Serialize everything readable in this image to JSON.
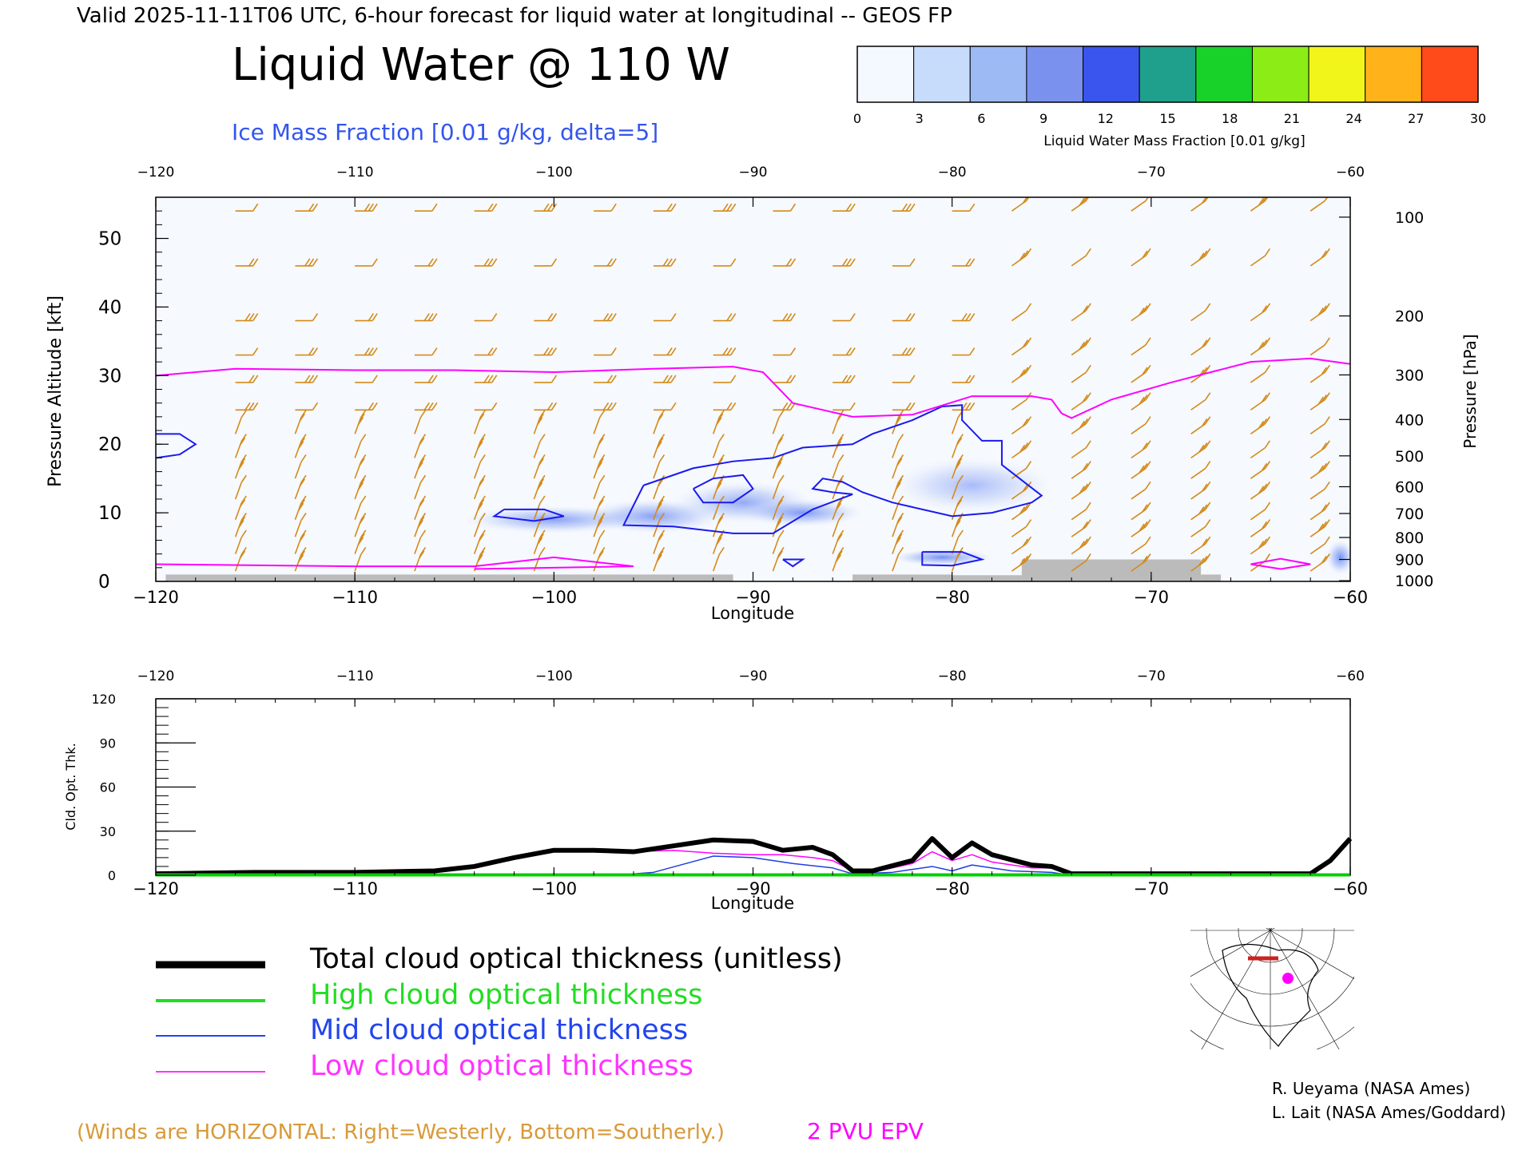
{
  "header": {
    "valid_line": "Valid 2025-11-11T06 UTC, 6-hour forecast for liquid water at longitudinal -- GEOS FP",
    "main_title": "Liquid Water @ 110 W",
    "subtitle": "Ice Mass Fraction [0.01 g/kg, delta=5]"
  },
  "colorbar": {
    "label": "Liquid Water Mass Fraction [0.01 g/kg]",
    "ticks": [
      "0",
      "3",
      "6",
      "9",
      "12",
      "15",
      "18",
      "21",
      "24",
      "27",
      "30"
    ],
    "colors": [
      "#f4f8ff",
      "#c7dcfb",
      "#9ebaf5",
      "#7a92ee",
      "#3a55ee",
      "#1ea08c",
      "#18d22a",
      "#8cec16",
      "#f2f51a",
      "#ffb21a",
      "#ff4a1a"
    ]
  },
  "chart_data": [
    {
      "type": "heatmap",
      "title": "Liquid Water @ 110 W",
      "subtitle": "Ice Mass Fraction [0.01 g/kg, delta=5]",
      "xlabel": "Longitude",
      "ylabel": "Pressure Altitude [kft]",
      "ylabel_right": "Pressure [hPa]",
      "xlim": [
        -120,
        -60
      ],
      "ylim": [
        0,
        56
      ],
      "xticks": [
        -120,
        -110,
        -100,
        -90,
        -80,
        -70,
        -60
      ],
      "xtick_labels": [
        "−120",
        "−110",
        "−100",
        "−90",
        "−80",
        "−70",
        "−60"
      ],
      "yticks": [
        0,
        10,
        20,
        30,
        40,
        50
      ],
      "ytick_labels": [
        "0",
        "10",
        "20",
        "30",
        "40",
        "50"
      ],
      "pressure_ticks": [
        {
          "label": "100",
          "kft": 53.1
        },
        {
          "label": "200",
          "kft": 38.7
        },
        {
          "label": "300",
          "kft": 30.1
        },
        {
          "label": "400",
          "kft": 23.6
        },
        {
          "label": "500",
          "kft": 18.3
        },
        {
          "label": "600",
          "kft": 13.8
        },
        {
          "label": "700",
          "kft": 9.9
        },
        {
          "label": "800",
          "kft": 6.4
        },
        {
          "label": "900",
          "kft": 3.2
        },
        {
          "label": "1000",
          "kft": 0.1
        }
      ],
      "liquid_water_patches": [
        {
          "lon": -100,
          "kft": 9,
          "rx": 4.5,
          "ry": 2.0,
          "value": 6
        },
        {
          "lon": -95,
          "kft": 9.5,
          "rx": 3.5,
          "ry": 2.5,
          "value": 6
        },
        {
          "lon": -90.5,
          "kft": 11.5,
          "rx": 3.5,
          "ry": 3.0,
          "value": 5
        },
        {
          "lon": -87.5,
          "kft": 10,
          "rx": 3.0,
          "ry": 2.0,
          "value": 7
        },
        {
          "lon": -79,
          "kft": 14,
          "rx": 4.0,
          "ry": 4.0,
          "value": 3
        },
        {
          "lon": -80.5,
          "kft": 3.5,
          "rx": 2.5,
          "ry": 1.2,
          "value": 9
        },
        {
          "lon": -60.5,
          "kft": 3.5,
          "rx": 0.7,
          "ry": 2.5,
          "value": 10
        }
      ],
      "epv_2pvu": {
        "name": "2 PVU EPV",
        "lon": [
          -120,
          -116,
          -110,
          -105,
          -100,
          -95,
          -91,
          -89.5,
          -88,
          -85,
          -82,
          -79,
          -76,
          -75,
          -74.5,
          -74,
          -72,
          -69,
          -65,
          -62,
          -60
        ],
        "kft": [
          30,
          31,
          30.8,
          30.8,
          30.5,
          31,
          31.3,
          30.5,
          26,
          24,
          24.3,
          27,
          27,
          26.5,
          24.5,
          23.8,
          26.5,
          29,
          32,
          32.5,
          31.7
        ]
      },
      "ice_contours": [
        {
          "lon": [
            -95.5,
            -93,
            -91,
            -89,
            -87.5,
            -85,
            -84,
            -82,
            -80.5,
            -79.5,
            -79.5,
            -78.5,
            -77.5,
            -77.5,
            -75.5,
            -76,
            -78,
            -80,
            -83,
            -84.5,
            -85.5,
            -86.5,
            -87,
            -86,
            -85,
            -87,
            -89,
            -91,
            -94,
            -96.5,
            -95.5
          ],
          "kft": [
            14,
            16.5,
            17.5,
            18,
            19.5,
            20,
            21.5,
            23.5,
            25.5,
            25.7,
            23.5,
            20.5,
            20.5,
            17,
            12.5,
            11.5,
            10,
            9.5,
            11.5,
            13,
            14.5,
            15,
            13.5,
            13,
            12.7,
            10.5,
            7,
            7,
            8,
            8.2,
            14
          ]
        },
        {
          "lon": [
            -93,
            -92,
            -90.5,
            -90,
            -91,
            -92.5,
            -93
          ],
          "kft": [
            13.5,
            15,
            15.5,
            13.5,
            11.5,
            11.5,
            13.5
          ]
        },
        {
          "lon": [
            -102.5,
            -100.5,
            -99.5,
            -101,
            -103,
            -102.5
          ],
          "kft": [
            10.5,
            10.5,
            9.5,
            8.8,
            9.5,
            10.5
          ]
        },
        {
          "lon": [
            -120,
            -118.8,
            -118,
            -118.8,
            -120
          ],
          "kft": [
            21.5,
            21.5,
            20,
            18.5,
            18
          ]
        },
        {
          "lon": [
            -81.5,
            -79.5,
            -78.5,
            -80,
            -81.5,
            -81.5
          ],
          "kft": [
            4.3,
            4.3,
            3.2,
            2.3,
            2.4,
            4.3
          ]
        },
        {
          "lon": [
            -88.5,
            -87.5,
            -88,
            -88.5
          ],
          "kft": [
            3.2,
            3.2,
            2.2,
            3.2
          ]
        }
      ],
      "topography": [
        {
          "lon_start": -119.5,
          "lon_end": -104,
          "kft": 1.0
        },
        {
          "lon_start": -104,
          "lon_end": -91,
          "kft": 1.0
        },
        {
          "lon_start": -85,
          "lon_end": -80,
          "kft": 1.0
        },
        {
          "lon_start": -80,
          "lon_end": -76.5,
          "kft": 0.9
        },
        {
          "lon_start": -76.5,
          "lon_end": -67.5,
          "kft": 3.2
        },
        {
          "lon_start": -67.5,
          "lon_end": -66.5,
          "kft": 1.0
        }
      ],
      "wind_barbs_note": "(Winds are HORIZONTAL: Right=Westerly, Bottom=Southerly.)",
      "wind_barb_columns": [
        -116,
        -113,
        -110,
        -107,
        -104,
        -101,
        -98,
        -95,
        -92,
        -89,
        -86,
        -83,
        -80,
        -77,
        -74,
        -71,
        -68,
        -65,
        -62
      ]
    },
    {
      "type": "line",
      "xlabel": "Longitude",
      "ylabel": "Cld. Opt. Thk.",
      "xlim": [
        -120,
        -60
      ],
      "ylim": [
        0,
        120
      ],
      "xticks": [
        -120,
        -110,
        -100,
        -90,
        -80,
        -70,
        -60
      ],
      "yticks": [
        0,
        30,
        60,
        90,
        120
      ],
      "ytick_labels": [
        "0",
        "30",
        "60",
        "90",
        "120"
      ],
      "series": [
        {
          "name": "Total cloud optical thickness (unitless)",
          "color": "#000000",
          "x": [
            -120,
            -115,
            -110,
            -106,
            -104,
            -102,
            -100,
            -98,
            -96,
            -94,
            -92,
            -90,
            -88.5,
            -87,
            -86,
            -85,
            -84,
            -82,
            -81,
            -80,
            -79,
            -78,
            -76,
            -75,
            -74,
            -72,
            -70,
            -64,
            -62,
            -61,
            -60
          ],
          "y": [
            1,
            2,
            2,
            3,
            6,
            12,
            17,
            17,
            16,
            20,
            24,
            23,
            17,
            19,
            14,
            3,
            3,
            10,
            25,
            12,
            22,
            14,
            7,
            6,
            1,
            1,
            1,
            1,
            1,
            10,
            25
          ]
        },
        {
          "name": "High cloud optical thickness",
          "color": "#00d000",
          "x": [
            -120,
            -60
          ],
          "y": [
            0.3,
            0.3
          ]
        },
        {
          "name": "Mid cloud optical thickness",
          "color": "#1f3ee0",
          "x": [
            -120,
            -97,
            -95,
            -92,
            -90,
            -88,
            -86,
            -85,
            -83,
            -81,
            -80,
            -79,
            -77,
            -75,
            -74,
            -60
          ],
          "y": [
            0,
            0,
            2,
            13,
            12,
            8,
            5,
            1,
            2,
            6,
            3,
            7,
            3,
            2,
            0,
            0
          ]
        },
        {
          "name": "Low cloud optical thickness",
          "color": "#ff00ff",
          "x": [
            -120,
            -110,
            -106,
            -104,
            -102,
            -100,
            -98,
            -96,
            -94,
            -92,
            -90,
            -88.5,
            -87,
            -86,
            -85,
            -84,
            -82,
            -81,
            -80,
            -79,
            -78,
            -76,
            -75,
            -74,
            -70,
            -64,
            -62,
            -61,
            -60
          ],
          "y": [
            1,
            2,
            3,
            6,
            12,
            17,
            17,
            16,
            17,
            15,
            14,
            14,
            12,
            10,
            3,
            2,
            8,
            16,
            10,
            14,
            9,
            5,
            5,
            1,
            1,
            1,
            1,
            10,
            25
          ]
        }
      ]
    }
  ],
  "legend": {
    "items": [
      {
        "label": "Total cloud optical thickness (unitless)",
        "color": "#000000"
      },
      {
        "label": "High cloud optical thickness",
        "color": "#22dd22"
      },
      {
        "label": "Mid cloud optical thickness",
        "color": "#2244ee"
      },
      {
        "label": "Low cloud optical thickness",
        "color": "#ff33ff"
      }
    ]
  },
  "footer": {
    "winds_note": "(Winds are HORIZONTAL: Right=Westerly, Bottom=Southerly.)",
    "epv_label": "2 PVU EPV",
    "credit_1": "R. Ueyama (NASA Ames)",
    "credit_2": "L. Lait (NASA Ames/Goddard)"
  },
  "colors": {
    "epv": "#ff00ff",
    "ice": "#1a1aee",
    "wind": "#d48a1a",
    "topo": "#bbbbbb",
    "legend_green": "#22dd22",
    "legend_blue": "#2244ee",
    "legend_magenta": "#ff33ff",
    "subtitle_blue": "#3355ee",
    "note_orange": "#d89a3a"
  }
}
